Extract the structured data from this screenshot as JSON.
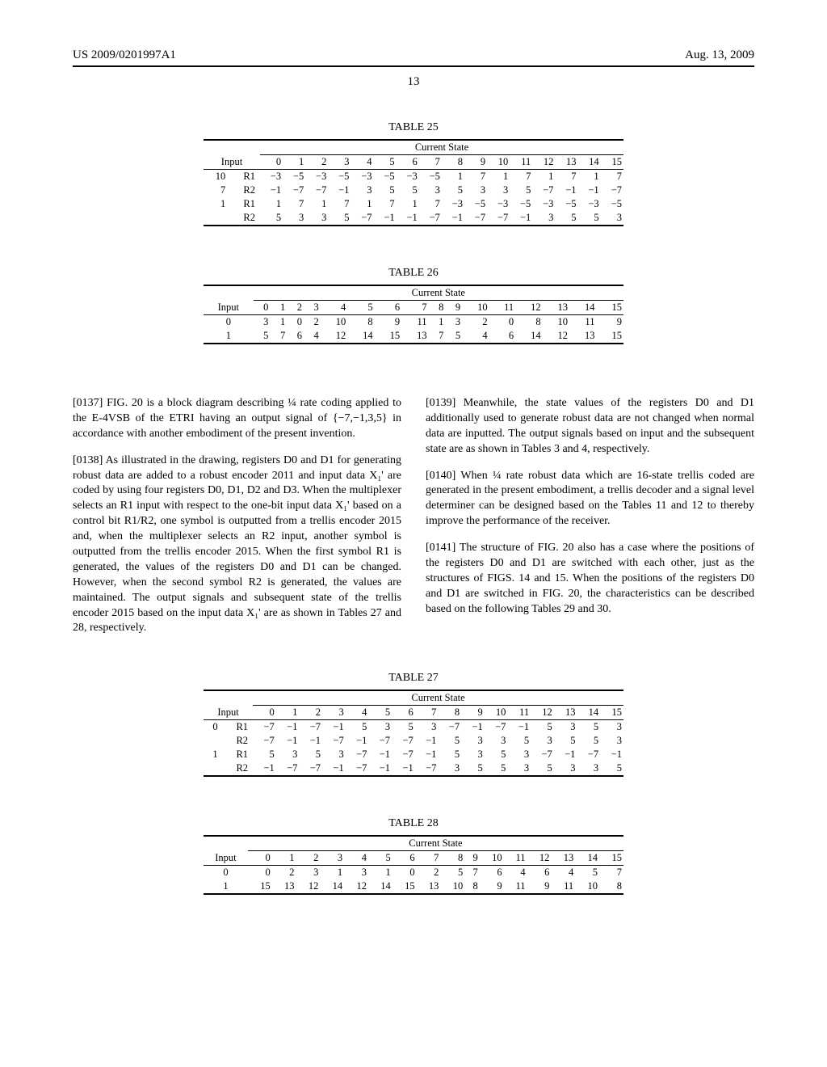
{
  "header": {
    "patent_id": "US 2009/0201997A1",
    "date": "Aug. 13, 2009",
    "page_number": "13"
  },
  "states": [
    "0",
    "1",
    "2",
    "3",
    "4",
    "5",
    "6",
    "7",
    "8",
    "9",
    "10",
    "11",
    "12",
    "13",
    "14",
    "15"
  ],
  "table25": {
    "caption": "TABLE 25",
    "cs_label": "Current State",
    "input_label": "Input",
    "rows": [
      {
        "inp": "10",
        "reg": "R1",
        "v": [
          "−3",
          "−5",
          "−3",
          "−5",
          "−3",
          "−5",
          "−3",
          "−5",
          "1",
          "7",
          "1",
          "7",
          "1",
          "7",
          "1",
          "7"
        ]
      },
      {
        "inp": "7",
        "reg": "R2",
        "v": [
          "−1",
          "−7",
          "−7",
          "−1",
          "3",
          "5",
          "5",
          "3",
          "5",
          "3",
          "3",
          "5",
          "−7",
          "−1",
          "−1",
          "−7"
        ]
      },
      {
        "inp": "1",
        "reg": "R1",
        "v": [
          "1",
          "7",
          "1",
          "7",
          "1",
          "7",
          "1",
          "7",
          "−3",
          "−5",
          "−3",
          "−5",
          "−3",
          "−5",
          "−3",
          "−5"
        ]
      },
      {
        "inp": "",
        "reg": "R2",
        "v": [
          "5",
          "3",
          "3",
          "5",
          "−7",
          "−1",
          "−1",
          "−7",
          "−1",
          "−7",
          "−7",
          "−1",
          "3",
          "5",
          "5",
          "3"
        ]
      }
    ]
  },
  "table26": {
    "caption": "TABLE 26",
    "cs_label": "Current State",
    "input_label": "Input",
    "rows": [
      {
        "inp": "0",
        "v": [
          "3",
          "1",
          "0",
          "2",
          "10",
          "8",
          "9",
          "11",
          "1",
          "3",
          "2",
          "0",
          "8",
          "10",
          "11",
          "9"
        ]
      },
      {
        "inp": "1",
        "v": [
          "5",
          "7",
          "6",
          "4",
          "12",
          "14",
          "15",
          "13",
          "7",
          "5",
          "4",
          "6",
          "14",
          "12",
          "13",
          "15"
        ]
      }
    ]
  },
  "table27": {
    "caption": "TABLE 27",
    "cs_label": "Current State",
    "input_label": "Input",
    "rows": [
      {
        "inp": "0",
        "reg": "R1",
        "v": [
          "−7",
          "−1",
          "−7",
          "−1",
          "5",
          "3",
          "5",
          "3",
          "−7",
          "−1",
          "−7",
          "−1",
          "5",
          "3",
          "5",
          "3"
        ]
      },
      {
        "inp": "",
        "reg": "R2",
        "v": [
          "−7",
          "−1",
          "−1",
          "−7",
          "−1",
          "−7",
          "−7",
          "−1",
          "5",
          "3",
          "3",
          "5",
          "3",
          "5",
          "5",
          "3"
        ]
      },
      {
        "inp": "1",
        "reg": "R1",
        "v": [
          "5",
          "3",
          "5",
          "3",
          "−7",
          "−1",
          "−7",
          "−1",
          "5",
          "3",
          "5",
          "3",
          "−7",
          "−1",
          "−7",
          "−1"
        ]
      },
      {
        "inp": "",
        "reg": "R2",
        "v": [
          "−1",
          "−7",
          "−7",
          "−1",
          "−7",
          "−1",
          "−1",
          "−7",
          "3",
          "5",
          "5",
          "3",
          "5",
          "3",
          "3",
          "5"
        ]
      }
    ]
  },
  "table28": {
    "caption": "TABLE 28",
    "cs_label": "Current State",
    "input_label": "Input",
    "rows": [
      {
        "inp": "0",
        "v": [
          "0",
          "2",
          "3",
          "1",
          "3",
          "1",
          "0",
          "2",
          "5",
          "7",
          "6",
          "4",
          "6",
          "4",
          "5",
          "7"
        ]
      },
      {
        "inp": "1",
        "v": [
          "15",
          "13",
          "12",
          "14",
          "12",
          "14",
          "15",
          "13",
          "10",
          "8",
          "9",
          "11",
          "9",
          "11",
          "10",
          "8"
        ]
      }
    ]
  },
  "paragraphs": {
    "p0137": "[0137]   FIG. 20 is a block diagram describing ¼ rate coding applied to the E-4VSB of the ETRI having an output signal of {−7,−1,3,5} in accordance with another embodiment of the present invention.",
    "p0138": "[0138]   As illustrated in the drawing, registers D0 and D1 for generating robust data are added to a robust encoder 2011 and input data X₁' are coded by using four registers D0, D1, D2 and D3. When the multiplexer selects an R1 input with respect to the one-bit input data X₁' based on a control bit R1/R2, one symbol is outputted from a trellis encoder 2015 and, when the multiplexer selects an R2 input, another symbol is outputted from the trellis encoder 2015. When the first symbol R1 is generated, the values of the registers D0 and D1 can be changed. However, when the second symbol R2 is generated, the values are maintained. The output signals and subsequent state of the trellis encoder 2015 based on the input data X₁' are as shown in Tables 27 and 28, respectively.",
    "p0139": "[0139]   Meanwhile, the state values of the registers D0 and D1 additionally used to generate robust data are not changed when normal data are inputted. The output signals based on input and the subsequent state are as shown in Tables 3 and 4, respectively.",
    "p0140": "[0140]   When ¼ rate robust data which are 16-state trellis coded are generated in the present embodiment, a trellis decoder and a signal level determiner can be designed based on the Tables 11 and 12 to thereby improve the performance of the receiver.",
    "p0141": "[0141]   The structure of FIG. 20 also has a case where the positions of the registers D0 and D1 are switched with each other, just as the structures of FIGS. 14 and 15. When the positions of the registers D0 and D1 are switched in FIG. 20, the characteristics can be described based on the following Tables 29 and 30."
  }
}
